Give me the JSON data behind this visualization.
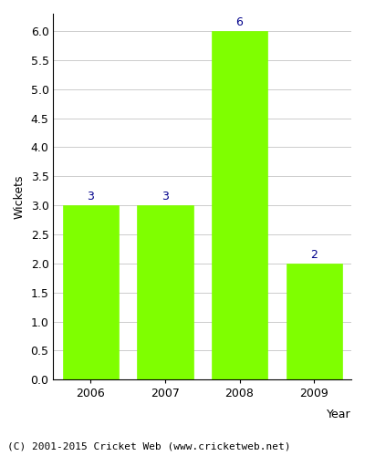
{
  "years": [
    "2006",
    "2007",
    "2008",
    "2009"
  ],
  "values": [
    3,
    3,
    6,
    2
  ],
  "bar_color": "#7FFF00",
  "bar_edge_color": "#7FFF00",
  "label_color": "#00008B",
  "ylabel": "Wickets",
  "xlabel": "Year",
  "ylim": [
    0,
    6.3
  ],
  "yticks": [
    0.0,
    0.5,
    1.0,
    1.5,
    2.0,
    2.5,
    3.0,
    3.5,
    4.0,
    4.5,
    5.0,
    5.5,
    6.0
  ],
  "footnote": "(C) 2001-2015 Cricket Web (www.cricketweb.net)",
  "label_fontsize": 9,
  "axis_label_fontsize": 9,
  "tick_fontsize": 9,
  "footnote_fontsize": 8,
  "bar_width": 0.75
}
